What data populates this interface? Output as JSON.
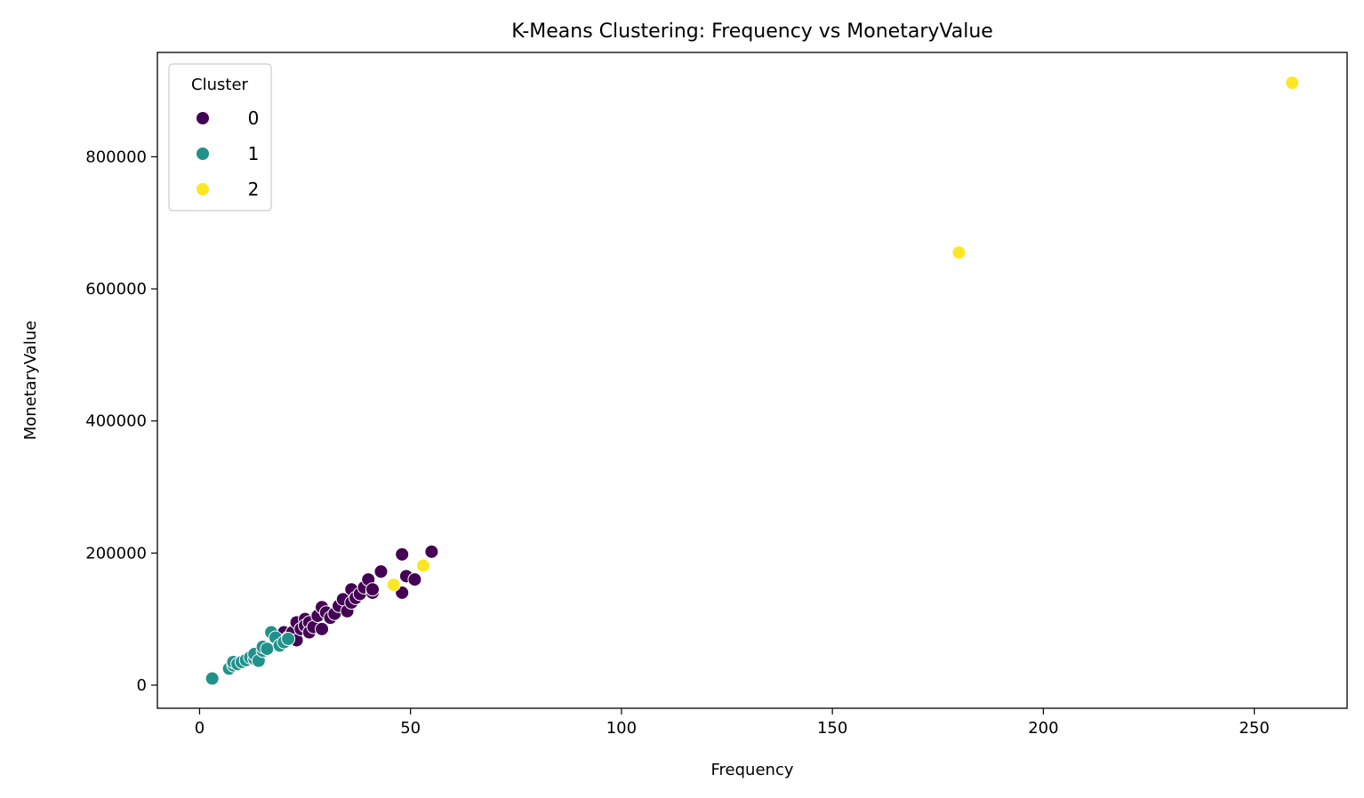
{
  "chart_data": {
    "type": "scatter",
    "title": "K-Means Clustering: Frequency vs MonetaryValue",
    "xlabel": "Frequency",
    "ylabel": "MonetaryValue",
    "xlim": [
      -10,
      272
    ],
    "ylim": [
      -35000,
      958000
    ],
    "xticks": [
      0,
      50,
      100,
      150,
      200,
      250
    ],
    "yticks": [
      0,
      200000,
      400000,
      600000,
      800000
    ],
    "grid": false,
    "legend": {
      "title": "Cluster",
      "position": "top-left"
    },
    "series": [
      {
        "name": "0",
        "color": "#440154",
        "points": [
          [
            19,
            75000
          ],
          [
            20,
            80000
          ],
          [
            21,
            72000
          ],
          [
            22,
            80000
          ],
          [
            23,
            95000
          ],
          [
            23,
            68000
          ],
          [
            24,
            85000
          ],
          [
            25,
            100000
          ],
          [
            25,
            90000
          ],
          [
            26,
            95000
          ],
          [
            26,
            80000
          ],
          [
            27,
            88000
          ],
          [
            28,
            105000
          ],
          [
            29,
            118000
          ],
          [
            29,
            85000
          ],
          [
            30,
            110000
          ],
          [
            31,
            102000
          ],
          [
            32,
            108000
          ],
          [
            33,
            120000
          ],
          [
            34,
            130000
          ],
          [
            35,
            112000
          ],
          [
            36,
            145000
          ],
          [
            36,
            125000
          ],
          [
            37,
            132000
          ],
          [
            38,
            138000
          ],
          [
            39,
            148000
          ],
          [
            40,
            160000
          ],
          [
            41,
            140000
          ],
          [
            41,
            145000
          ],
          [
            43,
            172000
          ],
          [
            46,
            152000
          ],
          [
            48,
            198000
          ],
          [
            48,
            140000
          ],
          [
            49,
            165000
          ],
          [
            51,
            160000
          ],
          [
            55,
            202000
          ]
        ]
      },
      {
        "name": "1",
        "color": "#21918c",
        "points": [
          [
            3,
            10000
          ],
          [
            7,
            25000
          ],
          [
            8,
            30000
          ],
          [
            8,
            35000
          ],
          [
            9,
            32000
          ],
          [
            10,
            35000
          ],
          [
            11,
            38000
          ],
          [
            12,
            42000
          ],
          [
            13,
            40000
          ],
          [
            13,
            47000
          ],
          [
            14,
            37000
          ],
          [
            15,
            52000
          ],
          [
            15,
            58000
          ],
          [
            16,
            55000
          ],
          [
            17,
            80000
          ],
          [
            18,
            72000
          ],
          [
            19,
            60000
          ],
          [
            20,
            65000
          ],
          [
            21,
            70000
          ]
        ]
      },
      {
        "name": "2",
        "color": "#fde725",
        "points": [
          [
            46,
            152000
          ],
          [
            53,
            181000
          ],
          [
            180,
            655000
          ],
          [
            259,
            912000
          ]
        ]
      }
    ]
  }
}
